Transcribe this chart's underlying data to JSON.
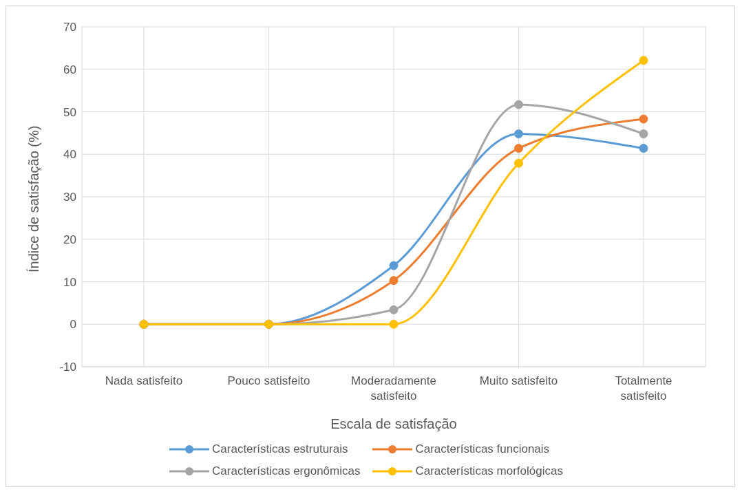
{
  "chart_data": {
    "type": "line",
    "xlabel": "Escala de satisfação",
    "ylabel": "Índice de satisfação (%)",
    "categories": [
      "Nada satisfeito",
      "Pouco satisfeito",
      "Moderadamente satisfeito",
      "Muito satisfeito",
      "Totalmente satisfeito"
    ],
    "series": [
      {
        "name": "Características estruturais",
        "color": "#5b9bd5",
        "values": [
          0,
          0,
          13.8,
          44.8,
          41.4
        ]
      },
      {
        "name": "Características funcionais",
        "color": "#ed7d31",
        "values": [
          0,
          0,
          10.3,
          41.4,
          48.3
        ]
      },
      {
        "name": "Características ergonômicas",
        "color": "#a5a5a5",
        "values": [
          0,
          0,
          3.4,
          51.7,
          44.8
        ]
      },
      {
        "name": "Características morfológicas",
        "color": "#ffc000",
        "values": [
          0,
          0,
          0,
          37.9,
          62.1
        ]
      }
    ],
    "ylim": [
      -10,
      70
    ],
    "yticks": [
      -10,
      0,
      10,
      20,
      30,
      40,
      50,
      60,
      70
    ],
    "grid": true,
    "legend": "bottom",
    "marker": "circle",
    "line_style": "solid"
  }
}
